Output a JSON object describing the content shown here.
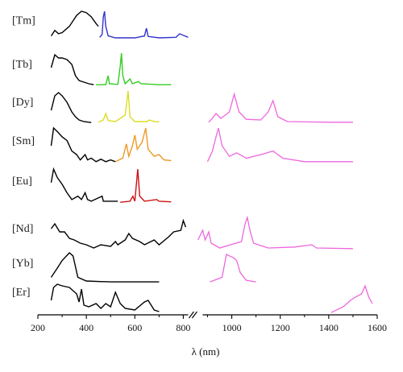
{
  "chart_data": {
    "type": "line",
    "xlabel": "λ (nm)",
    "xlim": [
      200,
      1600
    ],
    "axis_break": [
      820,
      880
    ],
    "x_ticks": [
      200,
      400,
      600,
      800,
      1000,
      1200,
      1400,
      1600
    ],
    "colors": {
      "excitation": "#000000",
      "visible_emission": "varies by ion",
      "nir_emission": "#ee66dd"
    },
    "series": [
      {
        "name": "[Tm]",
        "emission_color": "#3333cc",
        "excitation": [
          [
            255,
            0.1
          ],
          [
            270,
            0.3
          ],
          [
            285,
            0.18
          ],
          [
            300,
            0.22
          ],
          [
            330,
            0.45
          ],
          [
            360,
            0.85
          ],
          [
            380,
            1.0
          ],
          [
            400,
            0.95
          ],
          [
            420,
            0.8
          ],
          [
            440,
            0.55
          ],
          [
            450,
            0.45
          ]
        ],
        "emission": [
          [
            455,
            0.05
          ],
          [
            465,
            0.15
          ],
          [
            470,
            0.8
          ],
          [
            475,
            1.0
          ],
          [
            480,
            0.45
          ],
          [
            490,
            0.1
          ],
          [
            520,
            0.03
          ],
          [
            600,
            0.03
          ],
          [
            640,
            0.1
          ],
          [
            648,
            0.38
          ],
          [
            655,
            0.08
          ],
          [
            700,
            0.03
          ],
          [
            770,
            0.05
          ],
          [
            785,
            0.18
          ],
          [
            800,
            0.12
          ],
          [
            820,
            0.05
          ]
        ],
        "nir_emission": []
      },
      {
        "name": "[Tb]",
        "emission_color": "#33cc22",
        "excitation": [
          [
            255,
            0.55
          ],
          [
            270,
            0.95
          ],
          [
            285,
            0.85
          ],
          [
            300,
            0.85
          ],
          [
            320,
            0.8
          ],
          [
            340,
            0.65
          ],
          [
            355,
            0.3
          ],
          [
            370,
            0.15
          ],
          [
            390,
            0.1
          ],
          [
            410,
            0.05
          ],
          [
            430,
            0.02
          ]
        ],
        "emission": [
          [
            440,
            0.02
          ],
          [
            480,
            0.02
          ],
          [
            490,
            0.3
          ],
          [
            495,
            0.05
          ],
          [
            530,
            0.03
          ],
          [
            540,
            0.6
          ],
          [
            545,
            1.0
          ],
          [
            550,
            0.3
          ],
          [
            560,
            0.05
          ],
          [
            580,
            0.2
          ],
          [
            590,
            0.05
          ],
          [
            615,
            0.12
          ],
          [
            625,
            0.05
          ],
          [
            700,
            0.02
          ],
          [
            750,
            0.02
          ]
        ],
        "nir_emission": []
      },
      {
        "name": "[Dy]",
        "emission_color": "#dddd22",
        "excitation": [
          [
            255,
            0.4
          ],
          [
            270,
            0.85
          ],
          [
            285,
            0.95
          ],
          [
            300,
            0.85
          ],
          [
            320,
            0.65
          ],
          [
            340,
            0.35
          ],
          [
            355,
            0.2
          ],
          [
            370,
            0.1
          ],
          [
            390,
            0.05
          ],
          [
            420,
            0.02
          ]
        ],
        "emission": [
          [
            450,
            0.03
          ],
          [
            470,
            0.1
          ],
          [
            480,
            0.3
          ],
          [
            490,
            0.08
          ],
          [
            520,
            0.05
          ],
          [
            560,
            0.25
          ],
          [
            572,
            1.0
          ],
          [
            580,
            0.2
          ],
          [
            600,
            0.05
          ],
          [
            650,
            0.05
          ],
          [
            660,
            0.1
          ],
          [
            680,
            0.05
          ],
          [
            700,
            0.04
          ]
        ],
        "nir_emission": [
          [
            905,
            0.03
          ],
          [
            920,
            0.15
          ],
          [
            935,
            0.3
          ],
          [
            955,
            0.15
          ],
          [
            990,
            0.35
          ],
          [
            1010,
            0.9
          ],
          [
            1030,
            0.35
          ],
          [
            1060,
            0.12
          ],
          [
            1120,
            0.1
          ],
          [
            1150,
            0.35
          ],
          [
            1170,
            0.7
          ],
          [
            1190,
            0.2
          ],
          [
            1230,
            0.05
          ],
          [
            1400,
            0.03
          ],
          [
            1500,
            0.03
          ]
        ]
      },
      {
        "name": "[Sm]",
        "emission_color": "#ee9922",
        "excitation": [
          [
            255,
            0.5
          ],
          [
            265,
            1.0
          ],
          [
            280,
            0.9
          ],
          [
            300,
            0.75
          ],
          [
            320,
            0.65
          ],
          [
            340,
            0.35
          ],
          [
            360,
            0.25
          ],
          [
            375,
            0.1
          ],
          [
            395,
            0.25
          ],
          [
            405,
            0.1
          ],
          [
            420,
            0.15
          ],
          [
            440,
            0.05
          ],
          [
            460,
            0.12
          ],
          [
            480,
            0.05
          ],
          [
            500,
            0.1
          ],
          [
            520,
            0.05
          ]
        ],
        "emission": [
          [
            520,
            0.05
          ],
          [
            550,
            0.15
          ],
          [
            565,
            0.55
          ],
          [
            575,
            0.2
          ],
          [
            590,
            0.5
          ],
          [
            600,
            0.8
          ],
          [
            610,
            0.4
          ],
          [
            630,
            0.6
          ],
          [
            645,
            1.0
          ],
          [
            655,
            0.4
          ],
          [
            680,
            0.2
          ],
          [
            700,
            0.25
          ],
          [
            720,
            0.1
          ],
          [
            750,
            0.08
          ]
        ],
        "nir_emission": [
          [
            900,
            0.05
          ],
          [
            920,
            0.35
          ],
          [
            935,
            0.75
          ],
          [
            945,
            1.0
          ],
          [
            960,
            0.5
          ],
          [
            990,
            0.2
          ],
          [
            1020,
            0.3
          ],
          [
            1060,
            0.15
          ],
          [
            1120,
            0.25
          ],
          [
            1170,
            0.35
          ],
          [
            1210,
            0.15
          ],
          [
            1300,
            0.05
          ],
          [
            1500,
            0.05
          ]
        ]
      },
      {
        "name": "[Eu]",
        "emission_color": "#cc1111",
        "excitation": [
          [
            255,
            0.6
          ],
          [
            265,
            1.0
          ],
          [
            280,
            0.75
          ],
          [
            300,
            0.55
          ],
          [
            320,
            0.3
          ],
          [
            340,
            0.1
          ],
          [
            365,
            0.2
          ],
          [
            380,
            0.1
          ],
          [
            395,
            0.3
          ],
          [
            405,
            0.1
          ],
          [
            420,
            0.05
          ],
          [
            465,
            0.2
          ],
          [
            470,
            0.05
          ],
          [
            530,
            0.05
          ]
        ],
        "emission": [
          [
            540,
            0.02
          ],
          [
            580,
            0.05
          ],
          [
            592,
            0.2
          ],
          [
            600,
            0.05
          ],
          [
            612,
            1.0
          ],
          [
            620,
            0.2
          ],
          [
            640,
            0.05
          ],
          [
            690,
            0.1
          ],
          [
            700,
            0.05
          ],
          [
            750,
            0.03
          ]
        ],
        "nir_emission": []
      },
      {
        "name": "[Nd]",
        "emission_color": "#000000",
        "excitation": [
          [
            255,
            0.65
          ],
          [
            270,
            0.8
          ],
          [
            290,
            0.55
          ],
          [
            310,
            0.55
          ],
          [
            330,
            0.35
          ],
          [
            350,
            0.3
          ],
          [
            375,
            0.2
          ],
          [
            400,
            0.15
          ],
          [
            430,
            0.05
          ],
          [
            460,
            0.15
          ],
          [
            500,
            0.1
          ],
          [
            520,
            0.25
          ],
          [
            530,
            0.15
          ],
          [
            560,
            0.3
          ],
          [
            575,
            0.5
          ],
          [
            590,
            0.35
          ],
          [
            620,
            0.25
          ],
          [
            640,
            0.15
          ],
          [
            680,
            0.3
          ],
          [
            700,
            0.15
          ],
          [
            740,
            0.4
          ],
          [
            760,
            0.55
          ],
          [
            790,
            0.6
          ],
          [
            800,
            0.9
          ],
          [
            810,
            0.7
          ]
        ],
        "emission": [],
        "nir_emission": [
          [
            860,
            0.3
          ],
          [
            880,
            0.6
          ],
          [
            890,
            0.3
          ],
          [
            905,
            0.55
          ],
          [
            915,
            0.2
          ],
          [
            950,
            0.05
          ],
          [
            1040,
            0.25
          ],
          [
            1055,
            0.8
          ],
          [
            1064,
            1.0
          ],
          [
            1075,
            0.6
          ],
          [
            1090,
            0.2
          ],
          [
            1150,
            0.05
          ],
          [
            1260,
            0.08
          ],
          [
            1330,
            0.15
          ],
          [
            1350,
            0.05
          ],
          [
            1500,
            0.03
          ]
        ]
      },
      {
        "name": "[Yb]",
        "emission_color": "#000000",
        "excitation": [
          [
            255,
            0.2
          ],
          [
            280,
            0.5
          ],
          [
            300,
            0.75
          ],
          [
            330,
            1.0
          ],
          [
            345,
            0.9
          ],
          [
            365,
            0.2
          ],
          [
            400,
            0.08
          ],
          [
            500,
            0.05
          ],
          [
            700,
            0.05
          ]
        ],
        "emission": [],
        "nir_emission": [
          [
            910,
            0.05
          ],
          [
            960,
            0.2
          ],
          [
            978,
            0.95
          ],
          [
            990,
            0.9
          ],
          [
            1005,
            0.85
          ],
          [
            1020,
            0.75
          ],
          [
            1035,
            0.35
          ],
          [
            1060,
            0.1
          ],
          [
            1100,
            0.05
          ]
        ]
      },
      {
        "name": "[Er]",
        "emission_color": "#000000",
        "excitation": [
          [
            255,
            0.4
          ],
          [
            265,
            0.8
          ],
          [
            280,
            0.9
          ],
          [
            300,
            0.85
          ],
          [
            330,
            0.8
          ],
          [
            360,
            0.6
          ],
          [
            370,
            0.35
          ],
          [
            380,
            0.75
          ],
          [
            390,
            0.25
          ],
          [
            410,
            0.2
          ],
          [
            440,
            0.3
          ],
          [
            460,
            0.15
          ],
          [
            480,
            0.3
          ],
          [
            500,
            0.2
          ],
          [
            520,
            0.65
          ],
          [
            540,
            0.3
          ],
          [
            560,
            0.15
          ],
          [
            600,
            0.1
          ],
          [
            640,
            0.35
          ],
          [
            655,
            0.4
          ],
          [
            680,
            0.1
          ],
          [
            700,
            0.05
          ]
        ],
        "emission": [],
        "nir_emission": [
          [
            1410,
            0.02
          ],
          [
            1460,
            0.2
          ],
          [
            1490,
            0.4
          ],
          [
            1510,
            0.5
          ],
          [
            1535,
            0.6
          ],
          [
            1550,
            0.85
          ],
          [
            1565,
            0.5
          ],
          [
            1580,
            0.3
          ]
        ]
      }
    ]
  }
}
